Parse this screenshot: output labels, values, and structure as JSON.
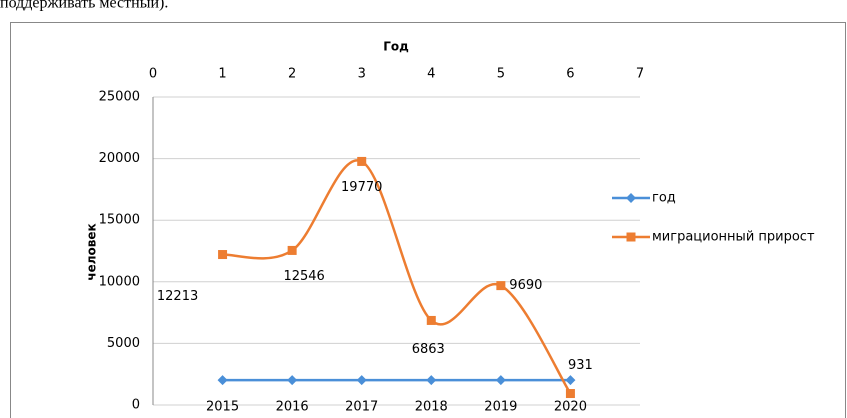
{
  "top_text": "поддерживать местный).",
  "chart_data": {
    "type": "line",
    "x_label": "Год",
    "y_label": "человек",
    "x": [
      1,
      2,
      3,
      4,
      5,
      6
    ],
    "xlim": [
      0,
      7
    ],
    "xticks": [
      0,
      1,
      2,
      3,
      4,
      5,
      6,
      7
    ],
    "ylim": [
      0,
      25000
    ],
    "yticks": [
      0,
      5000,
      10000,
      15000,
      20000,
      25000
    ],
    "grid": true,
    "legend": "right",
    "series": [
      {
        "name": "год",
        "color": "#4a8fd8",
        "marker": "diamond",
        "smooth": false,
        "values": [
          2015,
          2016,
          2017,
          2018,
          2019,
          2020
        ]
      },
      {
        "name": "миграционный прирост",
        "color": "#ed7d31",
        "marker": "square",
        "smooth": true,
        "values": [
          12213,
          12546,
          19770,
          6863,
          9690,
          931
        ]
      }
    ]
  }
}
